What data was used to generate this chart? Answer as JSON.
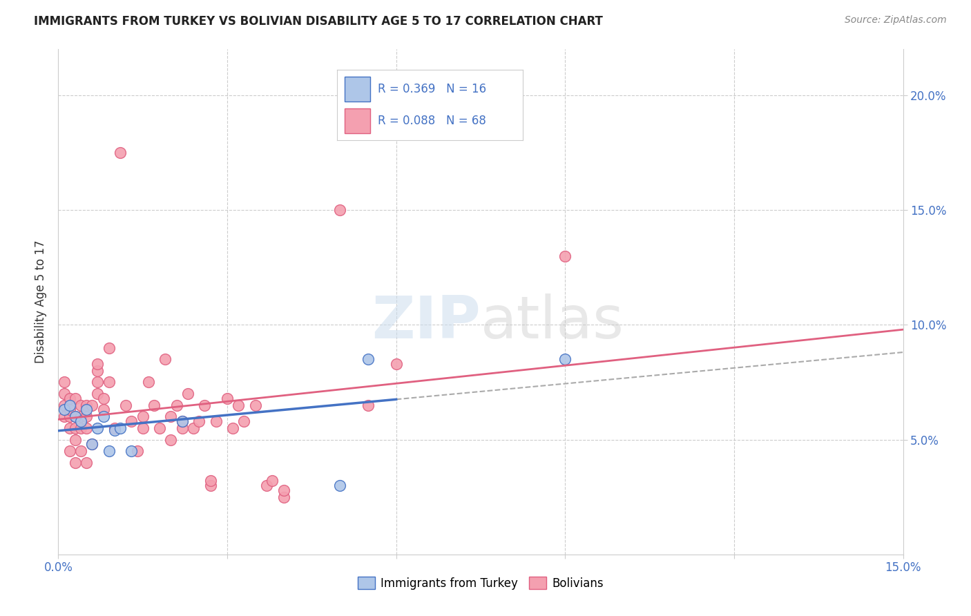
{
  "title": "IMMIGRANTS FROM TURKEY VS BOLIVIAN DISABILITY AGE 5 TO 17 CORRELATION CHART",
  "source": "Source: ZipAtlas.com",
  "ylabel": "Disability Age 5 to 17",
  "xlim": [
    0.0,
    0.15
  ],
  "ylim": [
    0.0,
    0.22
  ],
  "grid_color": "#cccccc",
  "background_color": "#ffffff",
  "watermark": "ZIPatlas",
  "color_turkey": "#aec6e8",
  "color_bolivia": "#f4a0b0",
  "line_color_turkey": "#4472c4",
  "line_color_bolivia": "#e06080",
  "dashed_line_color": "#aaaaaa",
  "scatter_turkey_x": [
    0.001,
    0.002,
    0.003,
    0.004,
    0.005,
    0.006,
    0.007,
    0.008,
    0.009,
    0.01,
    0.011,
    0.013,
    0.022,
    0.05,
    0.055,
    0.09
  ],
  "scatter_turkey_y": [
    0.063,
    0.065,
    0.06,
    0.058,
    0.063,
    0.048,
    0.055,
    0.06,
    0.045,
    0.054,
    0.055,
    0.045,
    0.058,
    0.03,
    0.085,
    0.085
  ],
  "scatter_bolivia_x": [
    0.001,
    0.001,
    0.001,
    0.001,
    0.002,
    0.002,
    0.002,
    0.002,
    0.002,
    0.003,
    0.003,
    0.003,
    0.003,
    0.003,
    0.004,
    0.004,
    0.004,
    0.004,
    0.005,
    0.005,
    0.005,
    0.005,
    0.006,
    0.006,
    0.007,
    0.007,
    0.007,
    0.007,
    0.008,
    0.008,
    0.009,
    0.009,
    0.01,
    0.011,
    0.012,
    0.013,
    0.014,
    0.015,
    0.015,
    0.016,
    0.017,
    0.018,
    0.019,
    0.02,
    0.02,
    0.021,
    0.022,
    0.022,
    0.023,
    0.024,
    0.025,
    0.026,
    0.027,
    0.027,
    0.028,
    0.03,
    0.031,
    0.032,
    0.033,
    0.035,
    0.037,
    0.038,
    0.04,
    0.04,
    0.05,
    0.055,
    0.06,
    0.09
  ],
  "scatter_bolivia_y": [
    0.065,
    0.07,
    0.075,
    0.06,
    0.055,
    0.06,
    0.063,
    0.068,
    0.045,
    0.04,
    0.05,
    0.055,
    0.06,
    0.068,
    0.045,
    0.055,
    0.06,
    0.065,
    0.04,
    0.055,
    0.06,
    0.065,
    0.048,
    0.065,
    0.07,
    0.075,
    0.08,
    0.083,
    0.063,
    0.068,
    0.075,
    0.09,
    0.055,
    0.175,
    0.065,
    0.058,
    0.045,
    0.055,
    0.06,
    0.075,
    0.065,
    0.055,
    0.085,
    0.05,
    0.06,
    0.065,
    0.055,
    0.058,
    0.07,
    0.055,
    0.058,
    0.065,
    0.03,
    0.032,
    0.058,
    0.068,
    0.055,
    0.065,
    0.058,
    0.065,
    0.03,
    0.032,
    0.025,
    0.028,
    0.15,
    0.065,
    0.083,
    0.13
  ]
}
